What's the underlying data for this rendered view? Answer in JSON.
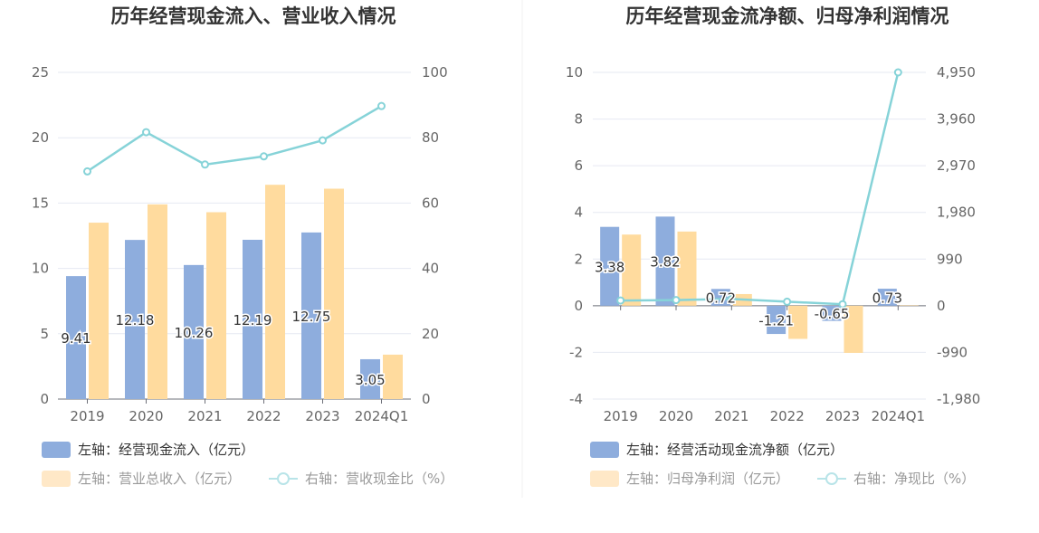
{
  "chart_data": [
    {
      "type": "bar",
      "title": "历年经营现金流入、营业收入情况",
      "categories": [
        "2019",
        "2020",
        "2021",
        "2022",
        "2023",
        "2024Q1"
      ],
      "left_axis": {
        "ylim": [
          0,
          25
        ],
        "ticks": [
          "0",
          "5",
          "10",
          "15",
          "20",
          "25"
        ]
      },
      "right_axis": {
        "ylim": [
          0,
          100
        ],
        "ticks": [
          "0",
          "20",
          "40",
          "60",
          "80",
          "100"
        ]
      },
      "series": [
        {
          "name": "左轴：经营现金流入（亿元）",
          "axis": "left",
          "kind": "bar",
          "values": [
            9.41,
            12.18,
            10.26,
            12.19,
            12.75,
            3.05
          ],
          "labels": [
            "9.41",
            "12.18",
            "10.26",
            "12.19",
            "12.75",
            "3.05"
          ]
        },
        {
          "name": "左轴：营业总收入（亿元）",
          "axis": "left",
          "kind": "bar",
          "values": [
            13.5,
            14.9,
            14.3,
            16.4,
            16.1,
            3.4
          ]
        },
        {
          "name": "右轴：营收现金比（%）",
          "axis": "right",
          "kind": "line",
          "values": [
            69.7,
            81.7,
            71.8,
            74.3,
            79.2,
            89.7
          ]
        }
      ],
      "colors": {
        "bar1": "#8eaddd",
        "bar2": "#ffdb9e",
        "line": "#86d3d8"
      },
      "grid": true,
      "legend_position": "bottom-left"
    },
    {
      "type": "bar",
      "title": "历年经营现金流净额、归母净利润情况",
      "categories": [
        "2019",
        "2020",
        "2021",
        "2022",
        "2023",
        "2024Q1"
      ],
      "left_axis": {
        "ylim": [
          -4,
          10
        ],
        "ticks": [
          "-4",
          "-2",
          "0",
          "2",
          "4",
          "6",
          "8",
          "10"
        ]
      },
      "right_axis": {
        "ylim": [
          -1980,
          4950
        ],
        "ticks": [
          "-1,980",
          "-990",
          "0",
          "990",
          "1,980",
          "2,970",
          "3,960",
          "4,950"
        ]
      },
      "series": [
        {
          "name": "左轴：经营活动现金流净额（亿元）",
          "axis": "left",
          "kind": "bar",
          "values": [
            3.38,
            3.82,
            0.72,
            -1.21,
            -0.65,
            0.73
          ],
          "labels": [
            "3.38",
            "3.82",
            "0.72",
            "-1.21",
            "-0.65",
            "0.73"
          ]
        },
        {
          "name": "左轴：归母净利润（亿元）",
          "axis": "left",
          "kind": "bar",
          "values": [
            3.05,
            3.18,
            0.5,
            -1.42,
            -2.02,
            0.02
          ]
        },
        {
          "name": "右轴：净现比（%）",
          "axis": "right",
          "kind": "line",
          "values": [
            111,
            120,
            144,
            85,
            32,
            4950
          ]
        }
      ],
      "colors": {
        "bar1": "#8eaddd",
        "bar2": "#ffdb9e",
        "line": "#86d3d8"
      },
      "grid": true,
      "legend_position": "bottom-left"
    }
  ]
}
